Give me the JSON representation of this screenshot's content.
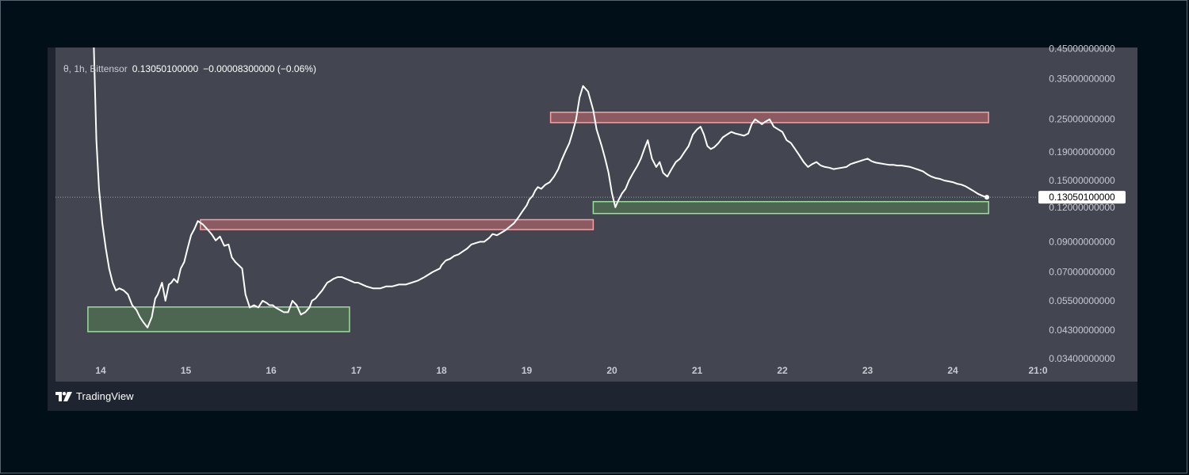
{
  "legend": {
    "symbol": "θ, 1h, Bittensor",
    "last": "0.13050100000",
    "change": "−0.00008300000",
    "change_pct": "(−0.06%)"
  },
  "watermark": {
    "brand": "TradingView"
  },
  "colors": {
    "page_bg": "#010f18",
    "card_bg": "#1f2530",
    "plot_bg": "#434651",
    "line": "#ffffff",
    "resistance_fill": "#8c5b62",
    "resistance_border": "#f7a1a1",
    "support_fill": "#4d6652",
    "support_border": "#9adf9a"
  },
  "chart_data": {
    "type": "line",
    "scale": "log",
    "interval": "1h",
    "x_tick_labels": [
      "14",
      "15",
      "16",
      "17",
      "18",
      "19",
      "20",
      "21",
      "22",
      "23",
      "24",
      "21:0"
    ],
    "y_tick_labels": [
      "0.45000000000",
      "0.35000000000",
      "0.25000000000",
      "0.19000000000",
      "0.15000000000",
      "0.12000000000",
      "0.09000000000",
      "0.07000000000",
      "0.05500000000",
      "0.04300000000",
      "0.03400000000"
    ],
    "ylim": [
      0.0335,
      0.455
    ],
    "last_price_label": "0.13050100000",
    "last_price": 0.130501,
    "series": [
      {
        "x": [
          13.92,
          13.95,
          13.98,
          14.02,
          14.06,
          14.1,
          14.14,
          14.18,
          14.22,
          14.27,
          14.32,
          14.37,
          14.42,
          14.46,
          14.5,
          14.55,
          14.6,
          14.64,
          14.67,
          14.72,
          14.76,
          14.8,
          14.83,
          14.86,
          14.9,
          14.94,
          14.98,
          15.02,
          15.06,
          15.1,
          15.14,
          15.2,
          15.25,
          15.3,
          15.35,
          15.4,
          15.45,
          15.5,
          15.54,
          15.58,
          15.62,
          15.66,
          15.7,
          15.75,
          15.8,
          15.85,
          15.9,
          15.95,
          15.98,
          16.02,
          16.05,
          16.1,
          16.15,
          16.2,
          16.25,
          16.3,
          16.35,
          16.4,
          16.45,
          16.48,
          16.52,
          16.56,
          16.6,
          16.63,
          16.66,
          16.7,
          16.73,
          16.78,
          16.83,
          16.88,
          16.93,
          16.98,
          17.02,
          17.07,
          17.12,
          17.2,
          17.28,
          17.35,
          17.42,
          17.5,
          17.58,
          17.65,
          17.72,
          17.8,
          17.9,
          17.98,
          18.0,
          18.05,
          18.1,
          18.15,
          18.2,
          18.25,
          18.3,
          18.35,
          18.4,
          18.45,
          18.5,
          18.56,
          18.6,
          18.65,
          18.7,
          18.75,
          18.8,
          18.85,
          18.9,
          18.95,
          19.0,
          19.03,
          19.07,
          19.1,
          19.13,
          19.17,
          19.22,
          19.27,
          19.32,
          19.37,
          19.4,
          19.45,
          19.5,
          19.54,
          19.58,
          19.62,
          19.66,
          19.72,
          19.78,
          19.82,
          19.88,
          19.92,
          19.96,
          20.0,
          20.04,
          20.08,
          20.12,
          20.16,
          20.2,
          20.25,
          20.3,
          20.34,
          20.38,
          20.42,
          20.47,
          20.52,
          20.56,
          20.6,
          20.65,
          20.7,
          20.75,
          20.8,
          20.85,
          20.9,
          20.95,
          21.0,
          21.04,
          21.08,
          21.12,
          21.16,
          21.2,
          21.25,
          21.3,
          21.35,
          21.4,
          21.45,
          21.5,
          21.55,
          21.6,
          21.64,
          21.68,
          21.72,
          21.76,
          21.8,
          21.85,
          21.9,
          21.95,
          22.0,
          22.05,
          22.1,
          22.15,
          22.2,
          22.25,
          22.3,
          22.35,
          22.4,
          22.45,
          22.5,
          22.55,
          22.6,
          22.65,
          22.7,
          22.75,
          22.8,
          22.85,
          22.9,
          22.95,
          23.0,
          23.05,
          23.1,
          23.15,
          23.2,
          23.25,
          23.3,
          23.35,
          23.4,
          23.45,
          23.5,
          23.55,
          23.6,
          23.65,
          23.7,
          23.75,
          23.8,
          23.85,
          23.9,
          23.95,
          24.0,
          24.05,
          24.1,
          24.15,
          24.2,
          24.25,
          24.3,
          24.35,
          24.4
        ],
        "y": [
          0.455,
          0.21,
          0.14,
          0.105,
          0.085,
          0.072,
          0.064,
          0.06,
          0.061,
          0.06,
          0.058,
          0.053,
          0.051,
          0.048,
          0.046,
          0.044,
          0.048,
          0.056,
          0.058,
          0.064,
          0.055,
          0.063,
          0.064,
          0.066,
          0.064,
          0.072,
          0.076,
          0.085,
          0.095,
          0.1,
          0.107,
          0.104,
          0.1,
          0.096,
          0.091,
          0.094,
          0.087,
          0.088,
          0.079,
          0.076,
          0.074,
          0.072,
          0.058,
          0.052,
          0.053,
          0.052,
          0.055,
          0.054,
          0.053,
          0.053,
          0.052,
          0.051,
          0.05,
          0.05,
          0.055,
          0.053,
          0.049,
          0.05,
          0.052,
          0.055,
          0.056,
          0.058,
          0.06,
          0.062,
          0.064,
          0.065,
          0.066,
          0.067,
          0.067,
          0.066,
          0.065,
          0.064,
          0.064,
          0.063,
          0.062,
          0.061,
          0.061,
          0.062,
          0.062,
          0.063,
          0.063,
          0.064,
          0.065,
          0.067,
          0.07,
          0.072,
          0.074,
          0.077,
          0.078,
          0.08,
          0.081,
          0.083,
          0.085,
          0.088,
          0.089,
          0.09,
          0.09,
          0.093,
          0.096,
          0.095,
          0.097,
          0.099,
          0.102,
          0.105,
          0.11,
          0.116,
          0.122,
          0.128,
          0.132,
          0.138,
          0.142,
          0.14,
          0.145,
          0.148,
          0.155,
          0.165,
          0.175,
          0.19,
          0.205,
          0.225,
          0.25,
          0.3,
          0.33,
          0.315,
          0.27,
          0.23,
          0.2,
          0.18,
          0.16,
          0.135,
          0.12,
          0.128,
          0.135,
          0.14,
          0.15,
          0.16,
          0.17,
          0.18,
          0.195,
          0.21,
          0.18,
          0.168,
          0.175,
          0.16,
          0.155,
          0.165,
          0.175,
          0.18,
          0.19,
          0.2,
          0.22,
          0.23,
          0.235,
          0.22,
          0.2,
          0.195,
          0.198,
          0.205,
          0.215,
          0.22,
          0.225,
          0.222,
          0.22,
          0.218,
          0.222,
          0.24,
          0.25,
          0.245,
          0.24,
          0.245,
          0.25,
          0.235,
          0.23,
          0.225,
          0.21,
          0.205,
          0.195,
          0.185,
          0.175,
          0.168,
          0.172,
          0.175,
          0.17,
          0.168,
          0.167,
          0.165,
          0.166,
          0.167,
          0.168,
          0.172,
          0.174,
          0.176,
          0.178,
          0.18,
          0.176,
          0.174,
          0.173,
          0.172,
          0.171,
          0.171,
          0.17,
          0.17,
          0.169,
          0.168,
          0.166,
          0.164,
          0.162,
          0.158,
          0.155,
          0.153,
          0.152,
          0.15,
          0.149,
          0.148,
          0.146,
          0.145,
          0.143,
          0.14,
          0.137,
          0.134,
          0.132,
          0.1305
        ]
      }
    ],
    "zones": [
      {
        "kind": "support",
        "x0": 13.85,
        "x1": 16.92,
        "y0": 0.0425,
        "y1": 0.0522
      },
      {
        "kind": "resistance",
        "x0": 15.17,
        "x1": 19.78,
        "y0": 0.0996,
        "y1": 0.1082
      },
      {
        "kind": "resistance",
        "x0": 19.28,
        "x1": 24.42,
        "y0": 0.243,
        "y1": 0.265
      },
      {
        "kind": "support",
        "x0": 19.78,
        "x1": 24.42,
        "y0": 0.1139,
        "y1": 0.1258
      }
    ]
  }
}
